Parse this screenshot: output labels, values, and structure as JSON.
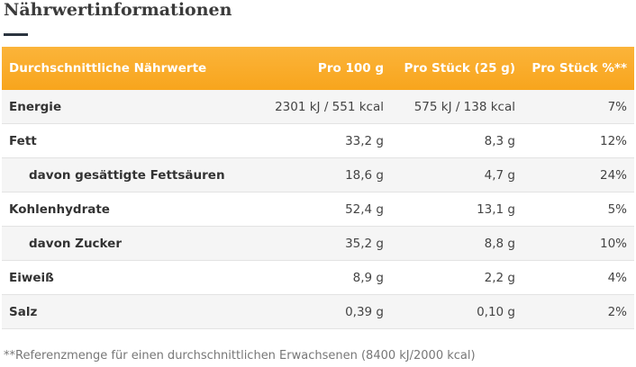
{
  "header": {
    "title": "Nährwertinformationen"
  },
  "table": {
    "columns": [
      "Durchschnittliche Nährwerte",
      "Pro 100 g",
      "Pro Stück (25 g)",
      "Pro Stück %**"
    ],
    "rows": [
      [
        "Energie",
        "2301 kJ / 551 kcal",
        "575 kJ / 138 kcal",
        "7%"
      ],
      [
        "Fett",
        "33,2 g",
        "8,3 g",
        "12%"
      ],
      [
        "davon gesättigte Fettsäuren",
        "18,6 g",
        "4,7 g",
        "24%"
      ],
      [
        "Kohlenhydrate",
        "52,4 g",
        "13,1 g",
        "5%"
      ],
      [
        "davon Zucker",
        "35,2 g",
        "8,8 g",
        "10%"
      ],
      [
        "Eiweiß",
        "8,9 g",
        "2,2 g",
        "4%"
      ],
      [
        "Salz",
        "0,39 g",
        "0,10 g",
        "2%"
      ]
    ]
  },
  "footnote": "**Referenzmenge für einen durchschnittlichen Erwachsenen (8400 kJ/2000 kcal)"
}
